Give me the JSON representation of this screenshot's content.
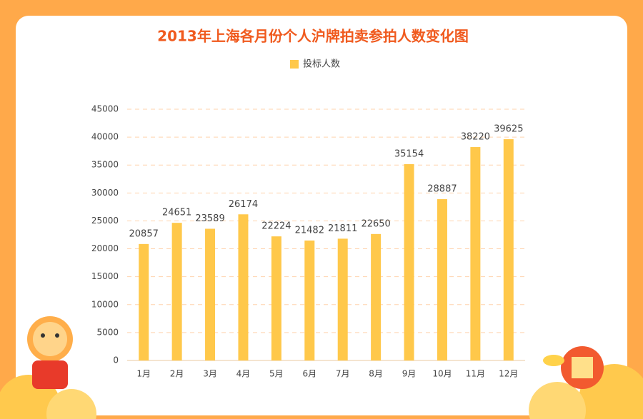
{
  "chart_data": {
    "type": "bar",
    "title": "2013年上海各月份个人沪牌拍卖参拍人数变化图",
    "categories": [
      "1月",
      "2月",
      "3月",
      "4月",
      "5月",
      "6月",
      "7月",
      "8月",
      "9月",
      "10月",
      "11月",
      "12月"
    ],
    "series": [
      {
        "name": "投标人数",
        "color": "#ffc84a",
        "values": [
          20857,
          24651,
          23589,
          26174,
          22224,
          21482,
          21811,
          22650,
          35154,
          28887,
          38220,
          39625
        ]
      }
    ],
    "ylim": [
      0,
      45000
    ],
    "yticks": [
      0,
      5000,
      10000,
      15000,
      20000,
      25000,
      30000,
      35000,
      40000,
      45000
    ],
    "grid": true,
    "legend": "top"
  }
}
